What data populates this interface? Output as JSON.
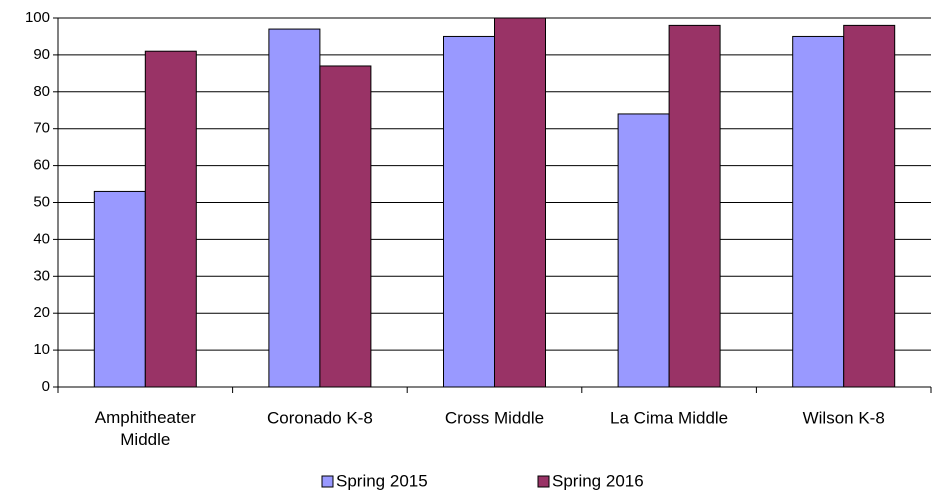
{
  "chart_data": {
    "type": "bar",
    "categories": [
      "Amphitheater Middle",
      "Coronado K-8",
      "Cross Middle",
      "La Cima Middle",
      "Wilson K-8"
    ],
    "series": [
      {
        "name": "Spring 2015",
        "color": "#9999ff",
        "values": [
          53,
          97,
          95,
          74,
          95
        ]
      },
      {
        "name": "Spring 2016",
        "color": "#993366",
        "values": [
          91,
          87,
          100,
          98,
          98
        ]
      }
    ],
    "ylim": [
      0,
      100
    ],
    "yticks": [
      0,
      10,
      20,
      30,
      40,
      50,
      60,
      70,
      80,
      90,
      100
    ],
    "grid": true,
    "legend": "bottom"
  }
}
